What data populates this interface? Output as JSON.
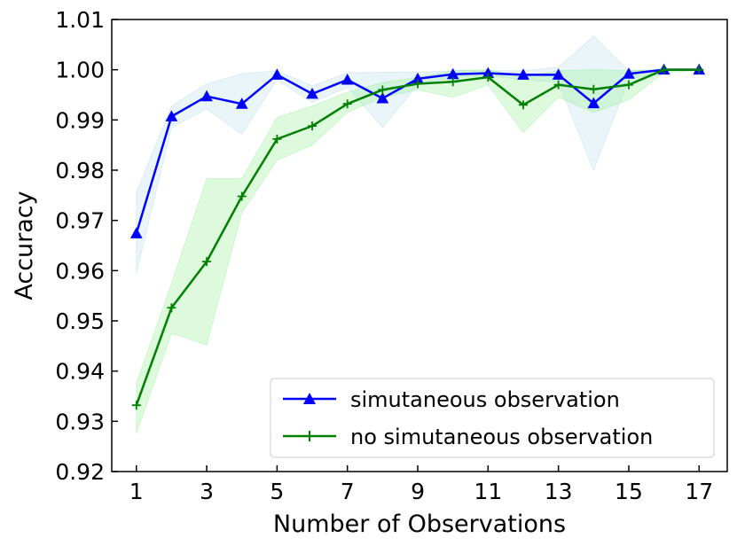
{
  "chart_data": {
    "type": "line",
    "title": "",
    "xlabel": "Number of Observations",
    "ylabel": "Accuracy",
    "xlim": [
      0.3,
      17.8
    ],
    "ylim": [
      0.92,
      1.01
    ],
    "xticks": [
      1,
      3,
      5,
      7,
      9,
      11,
      13,
      15,
      17
    ],
    "yticks": [
      0.92,
      0.93,
      0.94,
      0.95,
      0.96,
      0.97,
      0.98,
      0.99,
      1.0,
      1.01
    ],
    "ytick_labels": [
      "0.92",
      "0.93",
      "0.94",
      "0.95",
      "0.96",
      "0.97",
      "0.98",
      "0.99",
      "1.00",
      "1.01"
    ],
    "legend_position": "lower-right",
    "x": [
      1,
      2,
      3,
      4,
      5,
      6,
      7,
      8,
      9,
      10,
      11,
      12,
      13,
      14,
      15,
      16,
      17
    ],
    "series": [
      {
        "name": "simutaneous observation",
        "color": "#0000ff",
        "band_color": "#add8e6",
        "marker": "triangle",
        "values": [
          0.9674,
          0.9907,
          0.9947,
          0.9932,
          0.999,
          0.9952,
          0.998,
          0.9943,
          0.9982,
          0.9991,
          0.9993,
          0.999,
          0.999,
          0.9933,
          0.9992,
          1.0,
          1.0
        ],
        "lower": [
          0.9595,
          0.9885,
          0.9922,
          0.9872,
          0.998,
          0.9935,
          0.9965,
          0.9885,
          0.997,
          0.9985,
          0.9988,
          0.998,
          0.9975,
          0.98,
          0.998,
          0.9998,
          0.9998
        ],
        "upper": [
          0.9755,
          0.9928,
          0.9972,
          0.9992,
          0.9998,
          0.9968,
          0.9994,
          0.9995,
          0.9995,
          0.9998,
          0.9998,
          0.9998,
          1.0005,
          1.0067,
          0.9998,
          1.0,
          1.0
        ]
      },
      {
        "name": "no simutaneous observation",
        "color": "#008000",
        "band_color": "#90ee90",
        "marker": "plus",
        "values": [
          0.9332,
          0.9526,
          0.9618,
          0.9748,
          0.9862,
          0.9888,
          0.9932,
          0.996,
          0.9972,
          0.9976,
          0.9985,
          0.993,
          0.997,
          0.9961,
          0.997,
          1.0,
          1.0
        ],
        "lower": [
          0.9275,
          0.9475,
          0.9452,
          0.9715,
          0.982,
          0.985,
          0.9915,
          0.9945,
          0.996,
          0.9945,
          0.997,
          0.9875,
          0.9945,
          0.9915,
          0.994,
          0.9995,
          0.9998
        ],
        "upper": [
          0.9375,
          0.9575,
          0.9783,
          0.9783,
          0.9905,
          0.9928,
          0.9955,
          0.9975,
          0.9985,
          0.9998,
          1.0,
          0.9985,
          0.9998,
          1.0,
          0.9998,
          1.0,
          1.0
        ]
      }
    ]
  }
}
